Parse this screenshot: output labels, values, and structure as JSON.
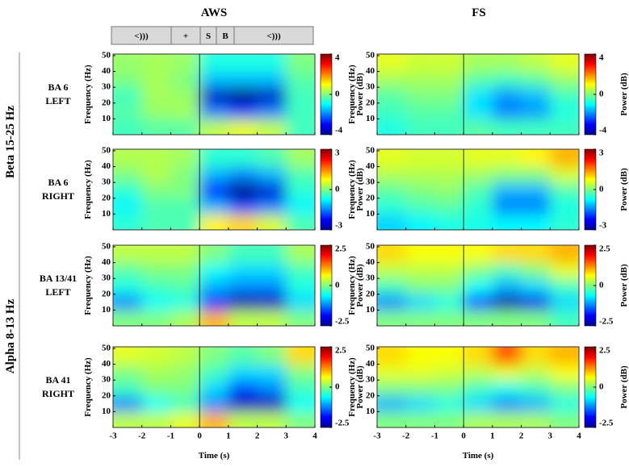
{
  "chart_data": {
    "type": "heatmap",
    "column_titles": [
      "AWS",
      "FS"
    ],
    "stimulus_labels": [
      "<)))",
      "+",
      "S",
      "B",
      "<)))"
    ],
    "group_labels": [
      "Beta 15-25 Hz",
      "Alpha 8-13 Hz"
    ],
    "xlabel": "Time (s)",
    "ylabel": "Frequency (Hz)",
    "colorbar_label": "Power (dB)",
    "xlim": [
      -3,
      4
    ],
    "xticks": [
      -3,
      -2,
      -1,
      0,
      1,
      2,
      3,
      4
    ],
    "ylim": [
      0,
      51
    ],
    "yticks": [
      10,
      20,
      30,
      40,
      50
    ],
    "x_bins": [
      -3,
      -2,
      -1,
      0,
      1,
      2,
      3,
      4
    ],
    "y_bins": [
      0,
      10,
      20,
      30,
      40,
      50
    ],
    "colormap": "jet",
    "rows": [
      {
        "label": [
          "BA 6",
          "LEFT"
        ],
        "clim": [
          -4,
          4
        ],
        "cticks": [
          -4,
          0,
          4
        ],
        "panels": [
          {
            "z": [
              [
                -0.5,
                -0.3,
                -0.3,
                0.5,
                0.8,
                0.5,
                -0.5
              ],
              [
                -0.3,
                0.2,
                0.3,
                -2,
                -2.5,
                -2,
                -0.5
              ],
              [
                -0.5,
                0.3,
                0.2,
                -3.5,
                -4,
                -3.5,
                -0.5
              ],
              [
                0,
                0.3,
                0,
                -1.5,
                -1.5,
                -1.5,
                -0.3
              ],
              [
                0.2,
                0.3,
                0.2,
                -0.8,
                -0.8,
                -0.8,
                0
              ]
            ]
          },
          {
            "z": [
              [
                -0.8,
                -0.5,
                -0.5,
                -0.3,
                -0.5,
                -0.5,
                -0.5
              ],
              [
                -0.5,
                -0.3,
                -0.3,
                -1.2,
                -2,
                -1.8,
                -0.8
              ],
              [
                -0.3,
                0,
                0,
                -1.2,
                -1.8,
                -1.5,
                -0.5
              ],
              [
                0.3,
                0.3,
                0.3,
                -0.3,
                -0.5,
                -0.3,
                0.2
              ],
              [
                0.8,
                0.6,
                0.6,
                0.3,
                0.3,
                0.5,
                0.8
              ]
            ]
          }
        ]
      },
      {
        "label": [
          "BA 6",
          "RIGHT"
        ],
        "clim": [
          -3,
          3
        ],
        "cticks": [
          -3,
          0,
          3
        ],
        "panels": [
          {
            "z": [
              [
                -0.5,
                -0.3,
                -0.3,
                0.8,
                1,
                0.5,
                -0.3
              ],
              [
                -0.8,
                -0.3,
                -0.3,
                -1.2,
                -1.8,
                -1.5,
                -0.8
              ],
              [
                -0.5,
                0,
                0,
                -2.2,
                -3,
                -2.5,
                -0.5
              ],
              [
                0,
                0.3,
                0,
                -1.2,
                -1.5,
                -1.2,
                -0.3
              ],
              [
                0.3,
                0.3,
                0.2,
                -0.5,
                -0.5,
                -0.3,
                0.2
              ]
            ]
          },
          {
            "z": [
              [
                -1,
                -0.8,
                -0.6,
                -0.6,
                -0.8,
                -0.8,
                -0.5
              ],
              [
                -0.5,
                -0.3,
                -0.2,
                -0.5,
                -1.5,
                -1.5,
                -0.6
              ],
              [
                -0.2,
                0,
                0.1,
                -0.3,
                -1.2,
                -1.2,
                -0.3
              ],
              [
                0.3,
                0.3,
                0.3,
                0.2,
                0,
                0,
                0.5
              ],
              [
                0.6,
                0.5,
                0.5,
                0.6,
                0.6,
                0.8,
                1.2
              ]
            ]
          }
        ]
      },
      {
        "label": [
          "BA 13/41",
          "LEFT"
        ],
        "clim": [
          -2.5,
          2.5
        ],
        "cticks": [
          -2.5,
          0,
          2.5
        ],
        "panels": [
          {
            "z": [
              [
                0,
                0,
                0.2,
                1,
                0.3,
                0.3,
                0
              ],
              [
                -1.2,
                -0.6,
                -0.5,
                -1.8,
                -2.3,
                -2.2,
                -0.8
              ],
              [
                -0.5,
                -0.3,
                -0.2,
                -1,
                -1.2,
                -1.2,
                -0.5
              ],
              [
                -0.2,
                0,
                0,
                -0.6,
                -0.8,
                -0.8,
                -0.3
              ],
              [
                0.3,
                0.3,
                0.3,
                0,
                -0.3,
                -0.3,
                0.2
              ]
            ]
          },
          {
            "z": [
              [
                0,
                0,
                0,
                0,
                0,
                0,
                -0.3
              ],
              [
                -1.2,
                -0.8,
                -0.5,
                -1.5,
                -2.3,
                -2,
                -0.8
              ],
              [
                -0.3,
                0,
                0,
                -0.6,
                -1,
                -0.8,
                -0.3
              ],
              [
                0.3,
                0.3,
                0.3,
                0,
                -0.3,
                0,
                0.5
              ],
              [
                0.8,
                0.6,
                0.6,
                0.6,
                0.8,
                0.8,
                1
              ]
            ]
          }
        ]
      },
      {
        "label": [
          "BA 41",
          "RIGHT"
        ],
        "clim": [
          -2.5,
          2.5
        ],
        "cticks": [
          -2.5,
          0,
          2.5
        ],
        "panels": [
          {
            "z": [
              [
                0.3,
                0.3,
                0.5,
                1,
                0.3,
                0.3,
                0
              ],
              [
                -1.2,
                -0.6,
                -0.3,
                -1.2,
                -2.2,
                -2.2,
                -0.6
              ],
              [
                -0.3,
                0,
                0,
                -0.8,
                -1.5,
                -1.2,
                -0.3
              ],
              [
                0,
                0.2,
                0.1,
                -0.3,
                -0.8,
                -0.8,
                0
              ],
              [
                0.5,
                0.4,
                0.3,
                0,
                -0.2,
                0,
                0.8
              ]
            ]
          },
          {
            "z": [
              [
                0,
                0,
                0,
                0.2,
                0.2,
                0.2,
                0
              ],
              [
                -1,
                -0.8,
                -0.5,
                -0.8,
                -1.2,
                -1,
                -0.5
              ],
              [
                0,
                0,
                0,
                -0.3,
                -0.5,
                -0.3,
                0
              ],
              [
                0.5,
                0.5,
                0.4,
                0.3,
                0.5,
                0.3,
                0.6
              ],
              [
                0.8,
                0.6,
                0.6,
                0.8,
                1.5,
                0.8,
                1
              ]
            ]
          }
        ]
      }
    ]
  }
}
